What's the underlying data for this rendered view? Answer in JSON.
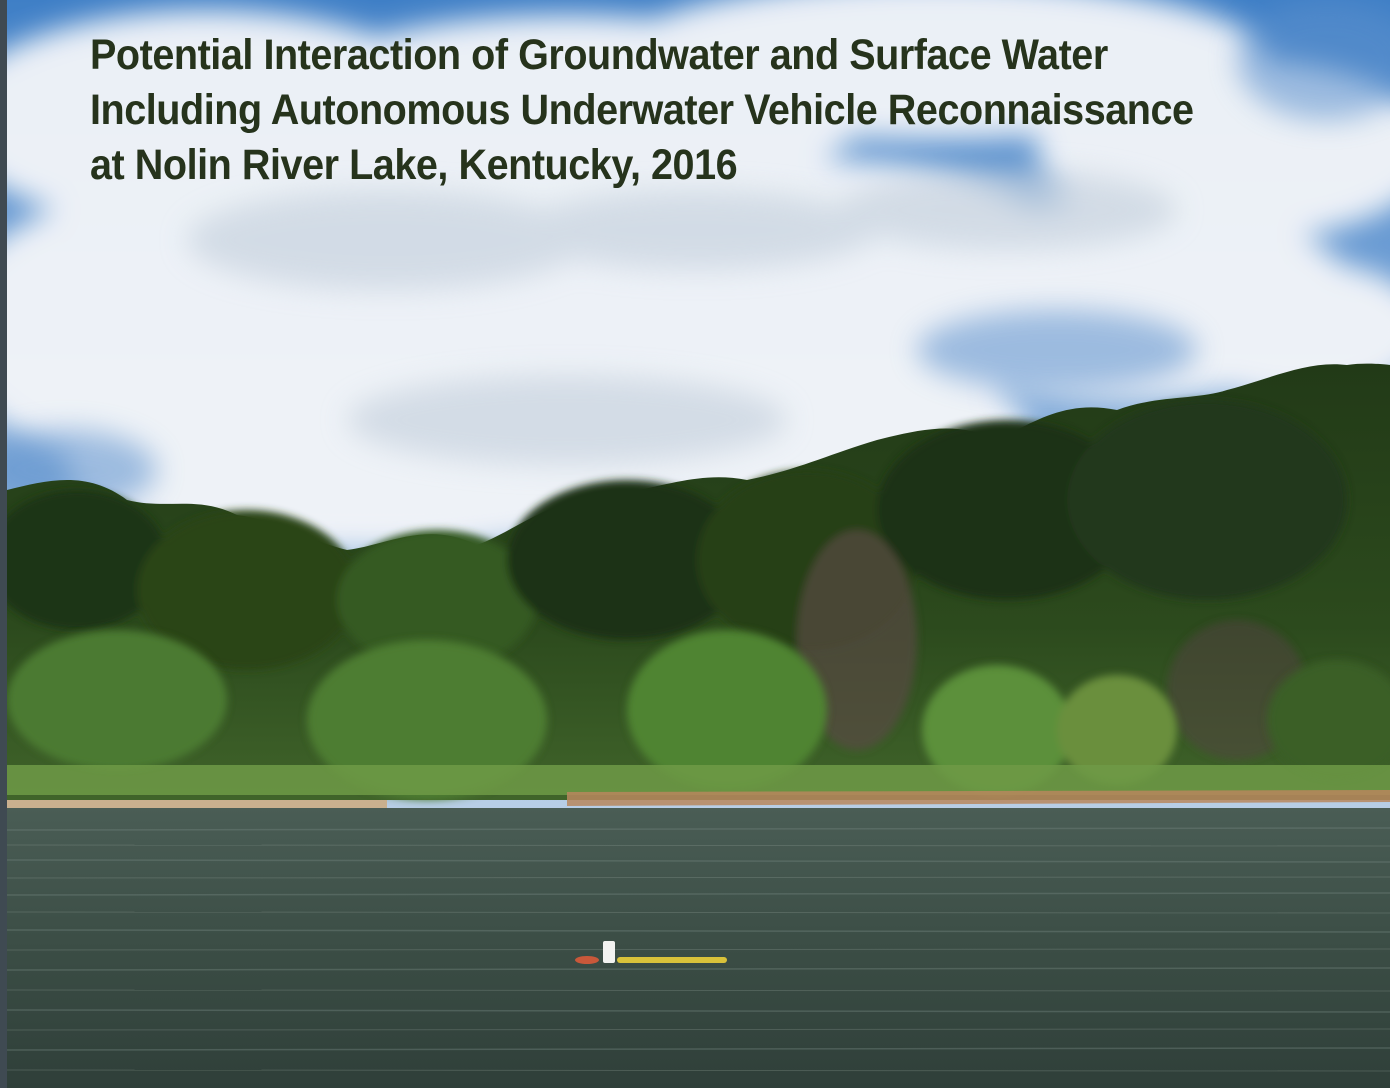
{
  "cover": {
    "title_lines": [
      "Potential Interaction of Groundwater and Surface Water",
      "Including Autonomous Underwater Vehicle Reconnaissance",
      "at Nolin River Lake, Kentucky, 2016"
    ]
  },
  "photo": {
    "subject": "lake-shoreline-photo",
    "elements": [
      "sky-with-clouds",
      "forested-shoreline",
      "lake-water",
      "autonomous-underwater-vehicle"
    ]
  },
  "colors": {
    "title_text": "#26331c",
    "sky_top": "#3f7fc6",
    "forest_dark": "#223a17",
    "water": "#3b4d45",
    "vehicle_yellow": "#d9c23a"
  }
}
